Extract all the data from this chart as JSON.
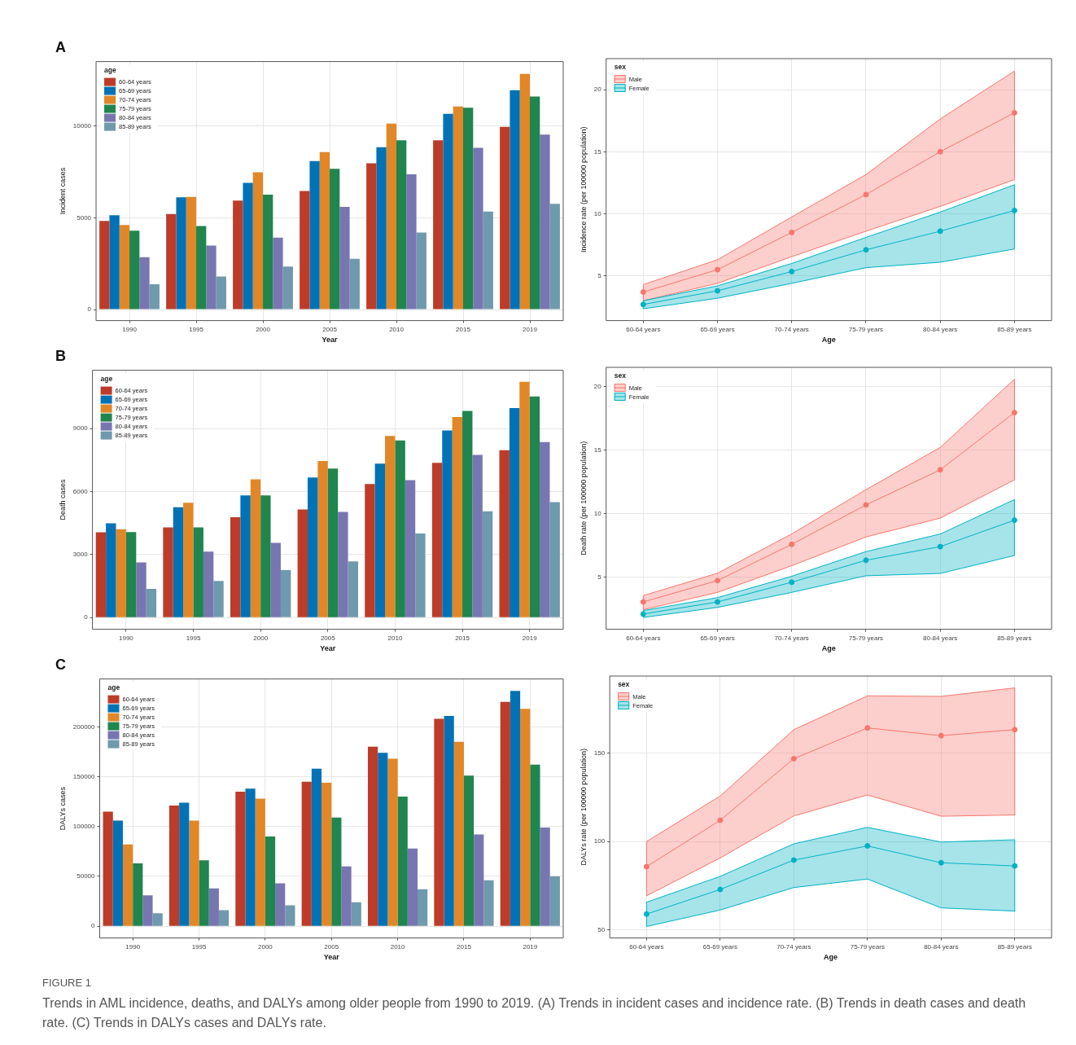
{
  "chart_data": [
    {
      "type": "bar",
      "title": "A",
      "xlabel": "Year",
      "ylabel": "Incident cases",
      "legend_title": "age",
      "legend": "top left",
      "grid": true,
      "categories": [
        "1990",
        "1995",
        "2000",
        "2005",
        "2010",
        "2015",
        "2019"
      ],
      "ylim": [
        -600,
        13500
      ],
      "yticks": [
        0,
        5000,
        10000
      ],
      "series": [
        {
          "name": "60-64 years",
          "color": "#bc3c29",
          "values": [
            4830,
            5200,
            5930,
            6450,
            7960,
            9210,
            9950
          ]
        },
        {
          "name": "65-69 years",
          "color": "#0072b5",
          "values": [
            5130,
            6110,
            6900,
            8080,
            8840,
            10660,
            11940
          ]
        },
        {
          "name": "70-74 years",
          "color": "#e18727",
          "values": [
            4600,
            6130,
            7470,
            8570,
            10120,
            11060,
            12830
          ]
        },
        {
          "name": "75-79 years",
          "color": "#20854e",
          "values": [
            4290,
            4550,
            6260,
            7660,
            9210,
            10990,
            11600
          ]
        },
        {
          "name": "80-84 years",
          "color": "#7876b1",
          "values": [
            2850,
            3480,
            3920,
            5590,
            7360,
            8800,
            9530
          ]
        },
        {
          "name": "85-89 years",
          "color": "#6f99ad",
          "values": [
            1380,
            1800,
            2340,
            2760,
            4190,
            5340,
            5760
          ]
        }
      ]
    },
    {
      "type": "line",
      "xlabel": "Age",
      "ylabel": "Incidence rate (per 100000 population)",
      "legend_title": "sex",
      "legend": "top left",
      "grid": true,
      "marker": "circle",
      "categories": [
        "60-64 years",
        "65-69 years",
        "70-74 years",
        "75-79 years",
        "80-84 years",
        "85-89 years"
      ],
      "ylim": [
        1.4,
        22.5
      ],
      "yticks": [
        5,
        10,
        15,
        20
      ],
      "series": [
        {
          "name": "Male",
          "color": "#f8766d",
          "values": [
            3.7,
            5.5,
            8.5,
            11.55,
            15,
            18.14
          ],
          "lower": [
            3,
            4.4,
            6.55,
            8.6,
            10.6,
            12.76
          ],
          "upper": [
            4.3,
            6.3,
            9.75,
            13.16,
            17.64,
            21.5
          ]
        },
        {
          "name": "Female",
          "color": "#00b2c4",
          "values": [
            2.7,
            3.8,
            5.35,
            7.1,
            8.6,
            10.27
          ],
          "lower": [
            2.35,
            3.2,
            4.4,
            5.66,
            6.1,
            7.17
          ],
          "upper": [
            3,
            4.2,
            6,
            8.1,
            10.14,
            12.34
          ]
        }
      ]
    },
    {
      "type": "bar",
      "title": "B",
      "xlabel": "Year",
      "ylabel": "Death cases",
      "legend_title": "age",
      "legend": "top left",
      "grid": true,
      "categories": [
        "1990",
        "1995",
        "2000",
        "2005",
        "2010",
        "2015",
        "2019"
      ],
      "ylim": [
        -560,
        11770
      ],
      "yticks": [
        0,
        3000,
        6000,
        9000
      ],
      "series": [
        {
          "name": "60-64 years",
          "color": "#bc3c29",
          "values": [
            4060,
            4290,
            4780,
            5140,
            6360,
            7360,
            7960
          ]
        },
        {
          "name": "65-69 years",
          "color": "#0072b5",
          "values": [
            4480,
            5250,
            5810,
            6670,
            7320,
            8900,
            9970
          ]
        },
        {
          "name": "70-74 years",
          "color": "#e18727",
          "values": [
            4200,
            5460,
            6580,
            7450,
            8640,
            9540,
            11220
          ]
        },
        {
          "name": "75-79 years",
          "color": "#20854e",
          "values": [
            4070,
            4290,
            5810,
            7090,
            8430,
            9840,
            10520
          ]
        },
        {
          "name": "80-84 years",
          "color": "#7876b1",
          "values": [
            2620,
            3140,
            3550,
            5030,
            6540,
            7740,
            8350
          ]
        },
        {
          "name": "85-89 years",
          "color": "#6f99ad",
          "values": [
            1360,
            1740,
            2260,
            2670,
            4000,
            5060,
            5490
          ]
        }
      ]
    },
    {
      "type": "line",
      "xlabel": "Age",
      "ylabel": "Death rate (per 100000 population)",
      "legend_title": "sex",
      "legend": "top left",
      "grid": true,
      "marker": "circle",
      "categories": [
        "60-64 years",
        "65-69 years",
        "70-74 years",
        "75-79 years",
        "80-84 years",
        "85-89 years"
      ],
      "ylim": [
        0.9,
        21.5
      ],
      "yticks": [
        5,
        10,
        15,
        20
      ],
      "series": [
        {
          "name": "Male",
          "color": "#f8766d",
          "values": [
            3.05,
            4.73,
            7.58,
            10.68,
            13.44,
            17.94
          ],
          "lower": [
            2.44,
            3.8,
            5.9,
            8.16,
            9.64,
            12.65
          ],
          "upper": [
            3.55,
            5.31,
            8.4,
            11.88,
            15.2,
            20.57
          ]
        },
        {
          "name": "Female",
          "color": "#00b2c4",
          "values": [
            2.1,
            3.05,
            4.6,
            6.33,
            7.4,
            9.48
          ],
          "lower": [
            1.83,
            2.62,
            3.8,
            5.11,
            5.29,
            6.7
          ],
          "upper": [
            2.37,
            3.39,
            5.07,
            7.01,
            8.39,
            11.1
          ]
        }
      ]
    },
    {
      "type": "bar",
      "title": "C",
      "xlabel": "Year",
      "ylabel": "DALYs cases",
      "legend_title": "age",
      "legend": "top left",
      "grid": true,
      "categories": [
        "1990",
        "1995",
        "2000",
        "2005",
        "2010",
        "2015",
        "2019"
      ],
      "ylim": [
        -11800,
        248000
      ],
      "yticks": [
        0,
        50000,
        100000,
        150000,
        200000
      ],
      "series": [
        {
          "name": "60-64 years",
          "color": "#bc3c29",
          "values": [
            115000,
            121000,
            135000,
            145000,
            180000,
            208000,
            225000
          ]
        },
        {
          "name": "65-69 years",
          "color": "#0072b5",
          "values": [
            106000,
            124000,
            138000,
            158000,
            174000,
            211000,
            236000
          ]
        },
        {
          "name": "70-74 years",
          "color": "#e18727",
          "values": [
            82000,
            106000,
            128000,
            144000,
            168000,
            185000,
            218000
          ]
        },
        {
          "name": "75-79 years",
          "color": "#20854e",
          "values": [
            63000,
            66000,
            90000,
            109000,
            130000,
            151000,
            162000
          ]
        },
        {
          "name": "80-84 years",
          "color": "#7876b1",
          "values": [
            31000,
            38000,
            43000,
            60000,
            78000,
            92000,
            99000
          ]
        },
        {
          "name": "85-89 years",
          "color": "#6f99ad",
          "values": [
            13000,
            16000,
            21000,
            24000,
            37000,
            46000,
            50000
          ]
        }
      ]
    },
    {
      "type": "line",
      "xlabel": "Age",
      "ylabel": "DALYs rate (per 100000 population)",
      "legend_title": "sex",
      "legend": "top left",
      "grid": true,
      "marker": "circle",
      "categories": [
        "60-64 years",
        "65-69 years",
        "70-74 years",
        "75-79 years",
        "80-84 years",
        "85-89 years"
      ],
      "ylim": [
        45.5,
        193.5
      ],
      "yticks": [
        50,
        100,
        150
      ],
      "annotations": [
        "FIGURE 1",
        "Trends in AML incidence, deaths, and DALYs among older people from 1990 to 2019. (A) Trends in incident cases and incidence rate. (B) Trends in death cases and death rate. (C) Trends in DALYs cases and DALYs rate."
      ],
      "series": [
        {
          "name": "Male",
          "color": "#f8766d",
          "values": [
            85.8,
            112,
            146.8,
            164.2,
            159.8,
            163.2
          ],
          "lower": [
            69.3,
            90.7,
            114.5,
            126.3,
            114.3,
            115
          ],
          "upper": [
            100,
            125.7,
            163.2,
            182.3,
            182,
            186.8
          ]
        },
        {
          "name": "Female",
          "color": "#00b2c4",
          "values": [
            59,
            72.9,
            89.5,
            97.5,
            88,
            86.2
          ],
          "lower": [
            52,
            61.3,
            74,
            78.8,
            62.5,
            60.7
          ],
          "upper": [
            65.7,
            80.3,
            98.7,
            108,
            99.7,
            101
          ]
        }
      ]
    }
  ]
}
